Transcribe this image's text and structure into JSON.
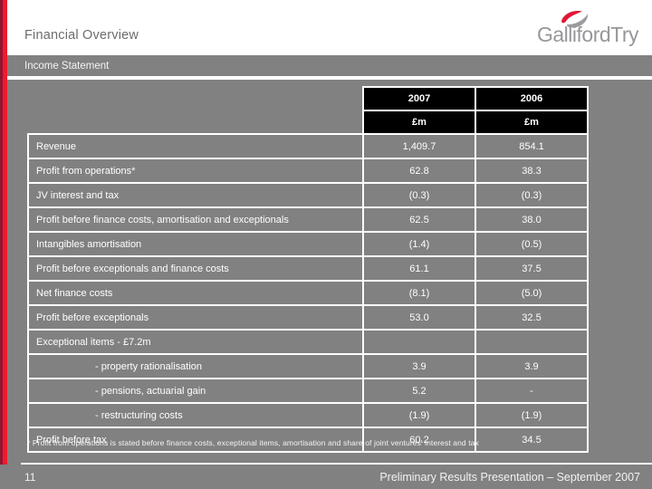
{
  "header": {
    "title": "Financial Overview",
    "subtitle": "Income Statement"
  },
  "logo": {
    "text": "GallifordTry"
  },
  "colors": {
    "accent_red": "#ee1b2d",
    "accent_dark_red": "#8f1730",
    "slide_gray": "#818181",
    "table_header_black": "#000000",
    "border_white": "#ffffff",
    "title_gray": "#6d6d6d",
    "logo_gray": "#97979b"
  },
  "table": {
    "year_headers": [
      "2007",
      "2006"
    ],
    "unit_headers": [
      "£m",
      "£m"
    ],
    "rows": [
      {
        "label": "Revenue",
        "y2007": "1,409.7",
        "y2006": "854.1",
        "indent": false
      },
      {
        "label": "Profit from operations*",
        "y2007": "62.8",
        "y2006": "38.3",
        "indent": false
      },
      {
        "label": "JV interest and tax",
        "y2007": "(0.3)",
        "y2006": "(0.3)",
        "indent": false
      },
      {
        "label": "Profit before finance costs, amortisation and exceptionals",
        "y2007": "62.5",
        "y2006": "38.0",
        "indent": false
      },
      {
        "label": "Intangibles amortisation",
        "y2007": "(1.4)",
        "y2006": "(0.5)",
        "indent": false
      },
      {
        "label": "Profit before exceptionals and finance costs",
        "y2007": "61.1",
        "y2006": "37.5",
        "indent": false
      },
      {
        "label": "Net finance costs",
        "y2007": "(8.1)",
        "y2006": "(5.0)",
        "indent": false
      },
      {
        "label": "Profit before exceptionals",
        "y2007": "53.0",
        "y2006": "32.5",
        "indent": false
      },
      {
        "label": "Exceptional items - £7.2m",
        "y2007": "",
        "y2006": "",
        "indent": false
      },
      {
        "label": "- property rationalisation",
        "y2007": "3.9",
        "y2006": "3.9",
        "indent": true
      },
      {
        "label": "- pensions, actuarial gain",
        "y2007": "5.2",
        "y2006": "-",
        "indent": true
      },
      {
        "label": "- restructuring costs",
        "y2007": "(1.9)",
        "y2006": "(1.9)",
        "indent": true
      },
      {
        "label": "Profit before tax",
        "y2007": "60.2",
        "y2006": "34.5",
        "indent": false
      }
    ]
  },
  "footnote": "* Profit from operations is stated before finance costs, exceptional items, amortisation and share of joint ventures' interest and tax",
  "footer": {
    "page_number": "11",
    "caption": "Preliminary Results Presentation – September 2007"
  }
}
